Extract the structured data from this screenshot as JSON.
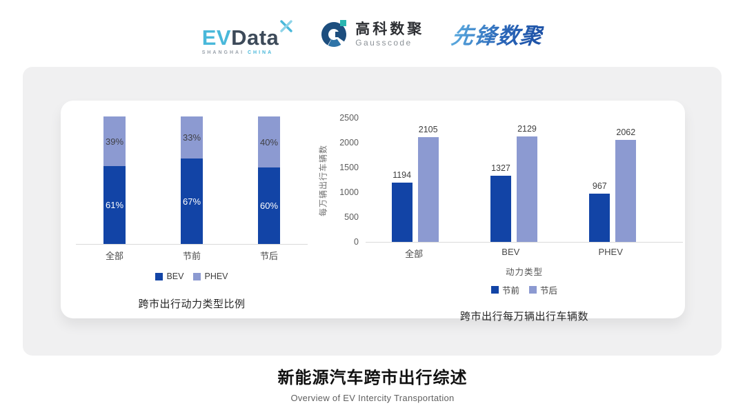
{
  "header": {
    "evdata": {
      "ev": "EV",
      "data": "Data",
      "sub_left": "SHANGHAI",
      "sub_right": "CHINA"
    },
    "gausscode": {
      "name_cn": "高科数聚",
      "name_en": "Gausscode"
    },
    "pioneer": {
      "name": "先锋数聚"
    }
  },
  "chart_data": [
    {
      "type": "bar",
      "variant": "stacked-100",
      "title": "跨市出行动力类型比例",
      "categories": [
        "全部",
        "节前",
        "节后"
      ],
      "series": [
        {
          "name": "BEV",
          "color": "#1244A6",
          "values": [
            61,
            67,
            60
          ],
          "value_labels": [
            "61%",
            "67%",
            "60%"
          ],
          "label_color": "#ffffff"
        },
        {
          "name": "PHEV",
          "color": "#8C9AD1",
          "values": [
            39,
            33,
            40
          ],
          "value_labels": [
            "39%",
            "33%",
            "40%"
          ],
          "label_color": "#3f3f44"
        }
      ],
      "legend_position": "bottom",
      "ylim": [
        0,
        100
      ],
      "grid": false
    },
    {
      "type": "bar",
      "variant": "grouped",
      "title": "跨市出行每万辆出行车辆数",
      "categories": [
        "全部",
        "BEV",
        "PHEV"
      ],
      "xlabel": "动力类型",
      "ylabel": "每万辆出行车辆数",
      "ylim": [
        0,
        2500
      ],
      "yticks": [
        0,
        500,
        1000,
        1500,
        2000,
        2500
      ],
      "series": [
        {
          "name": "节前",
          "color": "#1244A6",
          "values": [
            1194,
            1327,
            967
          ]
        },
        {
          "name": "节后",
          "color": "#8C9AD1",
          "values": [
            2105,
            2129,
            2062
          ]
        }
      ],
      "legend_position": "bottom",
      "grid": false
    }
  ],
  "footer": {
    "title": "新能源汽车跨市出行综述",
    "subtitle": "Overview of EV Intercity Transportation"
  },
  "colors": {
    "primary_dark_blue": "#1244A6",
    "secondary_light_blue": "#8C9AD1",
    "panel_bg": "#f0f0f1",
    "card_bg": "#ffffff",
    "axis_line": "#d9d9d9"
  }
}
